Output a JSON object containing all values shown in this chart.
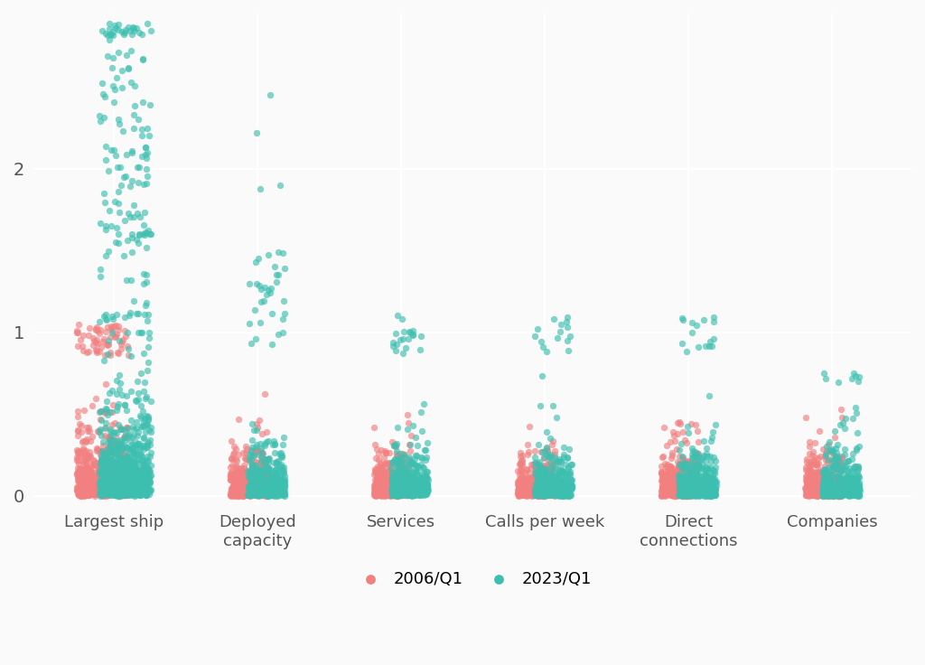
{
  "categories": [
    "Largest ship",
    "Deployed\ncapacity",
    "Services",
    "Calls per week",
    "Direct\nconnections",
    "Companies"
  ],
  "color_2006": "#F28080",
  "color_2023": "#3DBFB0",
  "background_color": "#FAFAFA",
  "grid_color": "#FFFFFF",
  "yticks": [
    0,
    1,
    2
  ],
  "ylim": [
    -0.05,
    2.95
  ],
  "legend_labels": [
    "2006/Q1",
    "2023/Q1"
  ],
  "point_size": 28,
  "alpha": 0.65,
  "seed": 42
}
